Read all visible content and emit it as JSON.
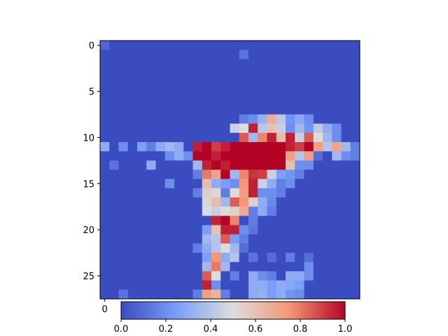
{
  "chart_data": {
    "type": "heatmap",
    "colormap": "coolwarm",
    "rows": 28,
    "cols": 28,
    "clim": [
      0.0,
      1.0
    ],
    "y_ticks": [
      0,
      5,
      10,
      15,
      20,
      25
    ],
    "x_ticks": [
      0
    ],
    "colorbar_ticks": [
      "0.0",
      "0.2",
      "0.4",
      "0.6",
      "0.8",
      "1.0"
    ],
    "values": [
      [
        0.08,
        0,
        0,
        0,
        0,
        0,
        0,
        0,
        0,
        0,
        0,
        0,
        0,
        0,
        0,
        0,
        0,
        0,
        0,
        0,
        0,
        0,
        0,
        0,
        0,
        0,
        0,
        0
      ],
      [
        0,
        0,
        0,
        0,
        0,
        0,
        0,
        0,
        0,
        0,
        0,
        0,
        0,
        0,
        0,
        0.12,
        0,
        0,
        0,
        0,
        0,
        0,
        0,
        0,
        0,
        0,
        0,
        0
      ],
      [
        0,
        0,
        0,
        0,
        0,
        0,
        0,
        0,
        0,
        0,
        0,
        0,
        0,
        0,
        0,
        0,
        0,
        0,
        0,
        0,
        0,
        0,
        0,
        0,
        0,
        0,
        0,
        0
      ],
      [
        0,
        0,
        0,
        0,
        0,
        0,
        0,
        0,
        0,
        0,
        0,
        0,
        0,
        0,
        0,
        0,
        0,
        0,
        0,
        0,
        0,
        0,
        0,
        0,
        0,
        0,
        0,
        0
      ],
      [
        0,
        0,
        0,
        0,
        0,
        0,
        0,
        0,
        0,
        0,
        0,
        0,
        0,
        0,
        0,
        0,
        0,
        0,
        0,
        0,
        0,
        0,
        0,
        0,
        0,
        0,
        0,
        0
      ],
      [
        0,
        0,
        0,
        0,
        0,
        0,
        0,
        0,
        0,
        0,
        0,
        0,
        0,
        0,
        0,
        0,
        0,
        0,
        0,
        0,
        0,
        0,
        0,
        0,
        0,
        0,
        0,
        0
      ],
      [
        0,
        0,
        0,
        0,
        0,
        0,
        0,
        0,
        0,
        0,
        0,
        0,
        0,
        0,
        0,
        0,
        0,
        0,
        0,
        0,
        0,
        0,
        0,
        0,
        0,
        0,
        0,
        0
      ],
      [
        0,
        0,
        0,
        0,
        0,
        0,
        0,
        0,
        0,
        0,
        0,
        0,
        0,
        0,
        0,
        0,
        0,
        0,
        0,
        0,
        0,
        0,
        0,
        0,
        0,
        0,
        0,
        0
      ],
      [
        0,
        0,
        0,
        0,
        0,
        0,
        0,
        0,
        0,
        0,
        0,
        0,
        0,
        0,
        0,
        0.15,
        0.2,
        0.32,
        0.68,
        0.42,
        0.22,
        0.28,
        0.2,
        0,
        0,
        0,
        0,
        0
      ],
      [
        0,
        0,
        0,
        0,
        0,
        0,
        0,
        0,
        0,
        0,
        0,
        0,
        0,
        0,
        0.45,
        0.5,
        0.95,
        0.42,
        0.6,
        0.45,
        0.2,
        0.35,
        0.22,
        0.42,
        0.3,
        0.2,
        0,
        0
      ],
      [
        0,
        0,
        0,
        0,
        0,
        0,
        0,
        0,
        0,
        0,
        0,
        0,
        0,
        0,
        0,
        0.85,
        0.35,
        0.78,
        0.95,
        0.62,
        0.95,
        0.45,
        0.85,
        0.5,
        0.35,
        0.2,
        0,
        0
      ],
      [
        0.3,
        0,
        0.2,
        0,
        0.25,
        0.15,
        0.3,
        0.35,
        0.3,
        0,
        0.95,
        1,
        0.9,
        0.95,
        1,
        1,
        1,
        1,
        1,
        1,
        0.95,
        0.9,
        1,
        0.72,
        0.4,
        0.7,
        0.35,
        0.15
      ],
      [
        0,
        0,
        0,
        0,
        0,
        0,
        0,
        0.2,
        0.3,
        0.2,
        1,
        1,
        0.95,
        1,
        1,
        1,
        1,
        1,
        1,
        1,
        0.72,
        0.4,
        0.72,
        0.1,
        0,
        0.35,
        0.2,
        0.15
      ],
      [
        0,
        0.12,
        0,
        0,
        0,
        0.3,
        0,
        0,
        0,
        0,
        0.35,
        0.95,
        1,
        0.95,
        1,
        1,
        1,
        1,
        1,
        1,
        0.6,
        0.2,
        0.2,
        0,
        0,
        0,
        0,
        0
      ],
      [
        0,
        0,
        0,
        0,
        0,
        0,
        0,
        0,
        0,
        0,
        0.15,
        0.8,
        0.7,
        1,
        0.35,
        0.78,
        0.92,
        0.9,
        0.45,
        0.25,
        0.22,
        0.15,
        0,
        0,
        0,
        0,
        0,
        0
      ],
      [
        0,
        0,
        0,
        0,
        0,
        0,
        0,
        0.2,
        0,
        0,
        0,
        0.62,
        0.3,
        0.25,
        0.2,
        0.75,
        0.95,
        0.45,
        0.3,
        0.15,
        0.2,
        0,
        0,
        0,
        0,
        0,
        0,
        0
      ],
      [
        0,
        0,
        0,
        0,
        0,
        0,
        0,
        0,
        0,
        0,
        0.15,
        0.55,
        0.52,
        0.15,
        0.5,
        0.72,
        0.95,
        0.2,
        0.2,
        0.15,
        0,
        0,
        0,
        0,
        0,
        0,
        0,
        0
      ],
      [
        0,
        0,
        0,
        0,
        0,
        0,
        0,
        0,
        0,
        0,
        0,
        0.48,
        0.62,
        0.35,
        0.85,
        0.75,
        0.55,
        0.3,
        0.18,
        0,
        0,
        0,
        0,
        0,
        0,
        0,
        0,
        0
      ],
      [
        0,
        0,
        0,
        0,
        0,
        0,
        0,
        0,
        0,
        0,
        0,
        0.5,
        0.45,
        0.5,
        0.55,
        0.68,
        0.15,
        0.3,
        0.15,
        0,
        0,
        0,
        0,
        0,
        0,
        0,
        0,
        0
      ],
      [
        0,
        0,
        0,
        0,
        0,
        0,
        0,
        0,
        0,
        0,
        0,
        0,
        0.95,
        1,
        0.78,
        0,
        0.15,
        0,
        0,
        0,
        0,
        0,
        0,
        0,
        0,
        0,
        0,
        0
      ],
      [
        0,
        0,
        0,
        0,
        0,
        0,
        0,
        0,
        0,
        0,
        0,
        0.25,
        0.6,
        0.95,
        0.95,
        0.2,
        0.12,
        0,
        0,
        0,
        0,
        0,
        0,
        0,
        0,
        0,
        0,
        0
      ],
      [
        0,
        0,
        0,
        0,
        0,
        0,
        0,
        0,
        0,
        0,
        0,
        0.35,
        0.4,
        0.85,
        0.25,
        0.15,
        0,
        0,
        0,
        0,
        0,
        0,
        0,
        0,
        0,
        0,
        0,
        0
      ],
      [
        0,
        0,
        0,
        0,
        0,
        0,
        0,
        0,
        0,
        0,
        0.15,
        0.3,
        0.4,
        0.5,
        0.35,
        0.1,
        0,
        0,
        0,
        0,
        0,
        0,
        0,
        0,
        0,
        0,
        0,
        0
      ],
      [
        0,
        0,
        0,
        0,
        0,
        0,
        0,
        0,
        0,
        0,
        0,
        0.25,
        0.75,
        0.3,
        0.4,
        0,
        0.12,
        0,
        0.1,
        0,
        0.15,
        0,
        0.1,
        0,
        0,
        0,
        0,
        0
      ],
      [
        0,
        0,
        0,
        0,
        0,
        0,
        0,
        0,
        0,
        0,
        0,
        0.35,
        0.8,
        0.35,
        0,
        0,
        0,
        0,
        0,
        0,
        0,
        0,
        0.2,
        0,
        0,
        0,
        0,
        0
      ],
      [
        0,
        0,
        0,
        0,
        0,
        0,
        0,
        0,
        0,
        0,
        0,
        0.85,
        0.5,
        0,
        0.15,
        0,
        0.3,
        0.2,
        0.15,
        0,
        0.3,
        0.3,
        0.2,
        0,
        0,
        0,
        0,
        0
      ],
      [
        0,
        0,
        0,
        0,
        0,
        0,
        0,
        0,
        0,
        0,
        0,
        0.95,
        0.2,
        0,
        0,
        0,
        0.3,
        0.3,
        0.25,
        0.3,
        0.28,
        0.25,
        0,
        0,
        0,
        0,
        0,
        0
      ],
      [
        0,
        0,
        0.12,
        0,
        0,
        0,
        0,
        0,
        0,
        0,
        0.15,
        0.72,
        0.65,
        0.15,
        0,
        0,
        0.3,
        0.32,
        0.25,
        0.3,
        0.22,
        0.2,
        0,
        0,
        0,
        0,
        0,
        0
      ]
    ]
  }
}
